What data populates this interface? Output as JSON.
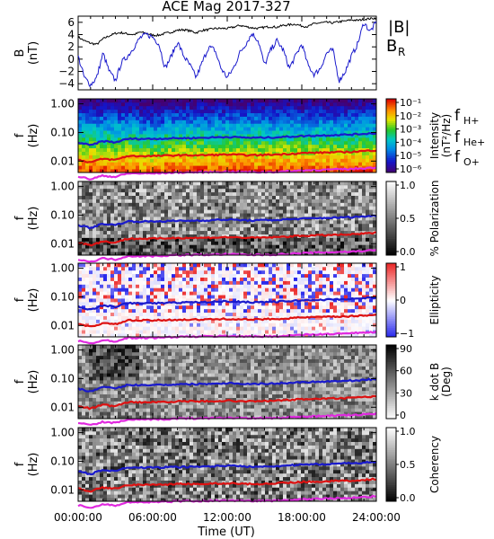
{
  "title": "ACE Mag 2017-327",
  "x_axis": {
    "label": "Time (UT)",
    "ticks": [
      "00:00:00",
      "06:00:00",
      "12:00:00",
      "18:00:00",
      "24:00:00"
    ],
    "range_hours": [
      0,
      24
    ]
  },
  "panel_ylabels": {
    "b_line1": "B",
    "b_line2": "(nT)",
    "f_line1": "f",
    "f_line2": "(Hz)"
  },
  "frequency_ticks": [
    "1.00",
    "0.10",
    "0.01"
  ],
  "line_legend": {
    "b_total": "|B|",
    "b_radial": "B",
    "b_radial_sub": "R"
  },
  "freq_legend": {
    "h": {
      "base": "f",
      "sub": "H+",
      "color": "#1a1acc"
    },
    "he": {
      "base": "f",
      "sub": "He+",
      "color": "#dd1111"
    },
    "o": {
      "base": "f",
      "sub": "O+",
      "color": "#e02adf"
    }
  },
  "colorbars": [
    {
      "label": "Intensity",
      "label2": "(nT²/Hz)",
      "ticks": [
        "10⁻¹",
        "10⁻²",
        "10⁻³",
        "10⁻⁴",
        "10⁻⁵",
        "10⁻⁶"
      ],
      "colormap": "rainbow"
    },
    {
      "label": "% Polarization",
      "label2": "",
      "ticks": [
        "1.0",
        "0.5",
        "0.0"
      ],
      "colormap": "gray"
    },
    {
      "label": "Ellipticity",
      "label2": "",
      "ticks": [
        "1",
        "0",
        "−1"
      ],
      "colormap": "redblue"
    },
    {
      "label": "k dot B",
      "label2": "(Deg)",
      "ticks": [
        "90",
        "60",
        "30",
        "0"
      ],
      "colormap": "grayrev"
    },
    {
      "label": "Coherency",
      "label2": "",
      "ticks": [
        "1.0",
        "0.5",
        "0.0"
      ],
      "colormap": "gray"
    }
  ],
  "chart_data": [
    {
      "type": "line",
      "title": "ACE Mag 2017-327",
      "ylabel": "B (nT)",
      "ylim": [
        -5,
        7
      ],
      "yticks": [
        6,
        4,
        2,
        0,
        -2,
        -4
      ],
      "series": [
        {
          "name": "|B|",
          "color": "#000000",
          "x": [
            0,
            0.5,
            1,
            1.5,
            2,
            2.5,
            3,
            3.5,
            4,
            4.5,
            5,
            5.5,
            6,
            6.5,
            7,
            7.5,
            8,
            8.5,
            9,
            9.5,
            10,
            10.5,
            11,
            11.5,
            12,
            12.5,
            13,
            13.5,
            14,
            14.5,
            15,
            15.5,
            16,
            16.5,
            17,
            17.5,
            18,
            18.5,
            19,
            19.5,
            20,
            20.5,
            21,
            21.5,
            22,
            22.5,
            23,
            23.5,
            24
          ],
          "y": [
            3.6,
            3.0,
            2.6,
            2.4,
            3.3,
            3.8,
            4.2,
            4.3,
            4.1,
            4.0,
            4.4,
            4.2,
            3.9,
            3.9,
            4.2,
            4.4,
            4.7,
            4.8,
            4.6,
            4.3,
            4.7,
            4.8,
            5.0,
            5.0,
            5.0,
            5.2,
            5.5,
            5.3,
            5.1,
            5.0,
            5.2,
            5.3,
            5.2,
            5.5,
            5.6,
            5.7,
            5.4,
            5.3,
            5.8,
            5.9,
            6.0,
            5.9,
            6.1,
            6.2,
            6.4,
            6.3,
            6.5,
            6.6,
            6.7
          ]
        },
        {
          "name": "B",
          "color": "#1a1acc",
          "x": [
            0,
            0.5,
            1,
            1.5,
            2,
            2.5,
            3,
            3.5,
            4,
            4.5,
            5,
            5.5,
            6,
            6.5,
            7,
            7.5,
            8,
            8.5,
            9,
            9.5,
            10,
            10.5,
            11,
            11.5,
            12,
            12.5,
            13,
            13.5,
            14,
            14.5,
            15,
            15.5,
            16,
            16.5,
            17,
            17.5,
            18,
            18.5,
            19,
            19.5,
            20,
            20.5,
            21,
            21.5,
            22,
            22.5,
            23,
            23.5,
            24
          ],
          "y": [
            0.5,
            -3.0,
            -4.2,
            -3.0,
            1.0,
            -2.0,
            -3.5,
            -0.5,
            0.5,
            2.0,
            3.5,
            4.0,
            3.6,
            2.5,
            -1.5,
            0.5,
            2.8,
            0.5,
            -1.0,
            -3.0,
            -0.5,
            2.0,
            1.5,
            -1.5,
            -3.0,
            -1.5,
            1.0,
            2.5,
            4.2,
            3.0,
            -1.0,
            1.5,
            3.0,
            1.5,
            -1.5,
            0.5,
            2.5,
            -1.0,
            -2.5,
            -1.5,
            1.0,
            1.5,
            -3.5,
            -2.0,
            0.5,
            2.5,
            6.0,
            4.5,
            6.0
          ]
        }
      ]
    },
    {
      "type": "heatmap",
      "ylabel": "f (Hz)",
      "y_scale": "log",
      "ylim": [
        0.004,
        1.5
      ],
      "colorbar": "Intensity (nT²/Hz)",
      "clim": [
        1e-06,
        0.1
      ],
      "overlay_series": [
        {
          "name": "f H+",
          "color": "#1a1acc",
          "x": [
            0,
            1,
            2,
            3,
            4,
            6,
            8,
            10,
            12,
            14,
            16,
            18,
            20,
            22,
            24
          ],
          "y": [
            0.045,
            0.035,
            0.05,
            0.045,
            0.06,
            0.06,
            0.063,
            0.065,
            0.07,
            0.065,
            0.068,
            0.075,
            0.08,
            0.085,
            0.095
          ]
        },
        {
          "name": "f He+",
          "color": "#dd1111",
          "x": [
            0,
            1,
            2,
            3,
            4,
            6,
            8,
            10,
            12,
            14,
            16,
            18,
            20,
            22,
            24
          ],
          "y": [
            0.011,
            0.009,
            0.012,
            0.011,
            0.015,
            0.015,
            0.016,
            0.016,
            0.017,
            0.016,
            0.017,
            0.019,
            0.02,
            0.021,
            0.024
          ]
        },
        {
          "name": "f O+",
          "color": "#e02adf",
          "x": [
            0,
            1,
            2,
            3,
            4,
            6,
            8,
            10,
            12,
            14,
            16,
            18,
            20,
            22,
            24
          ],
          "y": [
            0.0029,
            0.0023,
            0.0031,
            0.0028,
            0.0037,
            0.0037,
            0.004,
            0.0041,
            0.0043,
            0.0041,
            0.0042,
            0.0047,
            0.005,
            0.0053,
            0.006
          ]
        }
      ]
    },
    {
      "type": "heatmap",
      "ylabel": "f (Hz)",
      "y_scale": "log",
      "colorbar": "% Polarization",
      "clim": [
        0,
        1
      ]
    },
    {
      "type": "heatmap",
      "ylabel": "f (Hz)",
      "y_scale": "log",
      "colorbar": "Ellipticity",
      "clim": [
        -1,
        1
      ]
    },
    {
      "type": "heatmap",
      "ylabel": "f (Hz)",
      "y_scale": "log",
      "colorbar": "k dot B (Deg)",
      "clim": [
        0,
        90
      ]
    },
    {
      "type": "heatmap",
      "ylabel": "f (Hz)",
      "y_scale": "log",
      "colorbar": "Coherency",
      "clim": [
        0,
        1
      ]
    }
  ]
}
